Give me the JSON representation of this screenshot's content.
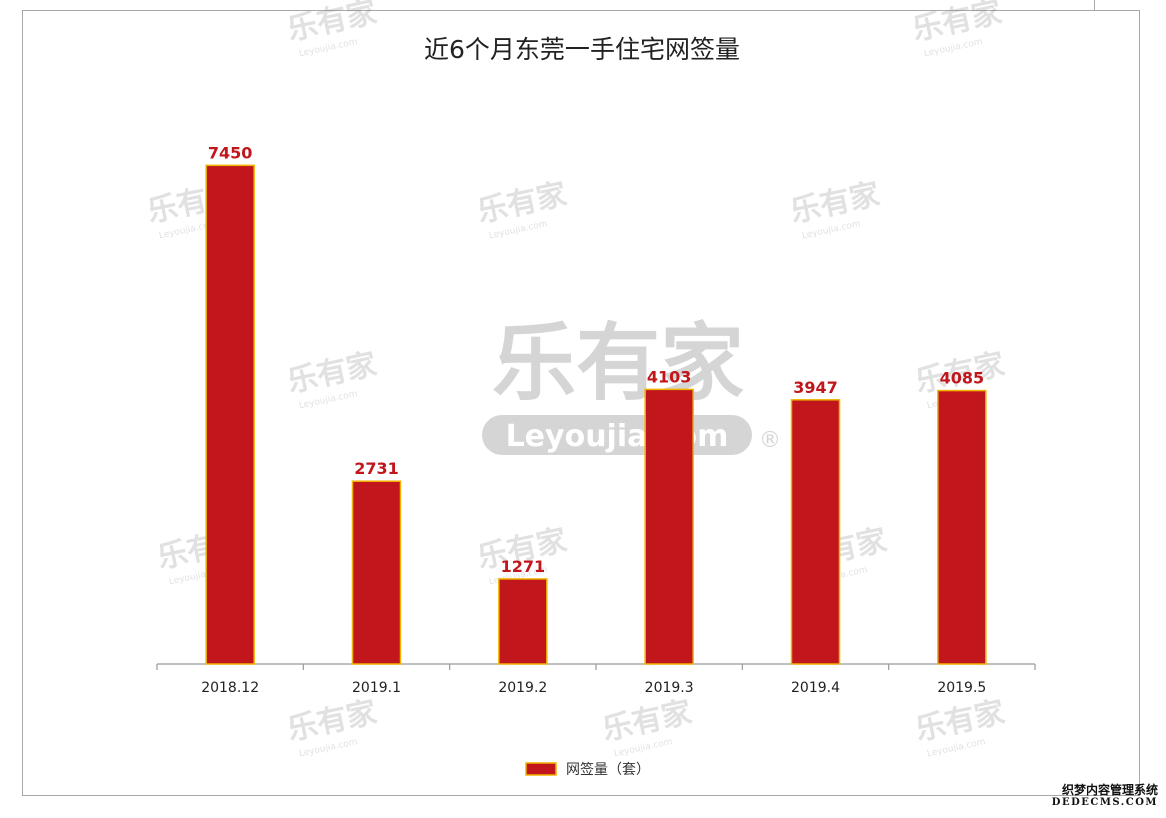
{
  "chart_data": {
    "type": "bar",
    "title": "近6个月东莞一手住宅网签量",
    "categories": [
      "2018.12",
      "2019.1",
      "2019.2",
      "2019.3",
      "2019.4",
      "2019.5"
    ],
    "series": [
      {
        "name": "网签量（套）",
        "values": [
          7450,
          2731,
          1271,
          4103,
          3947,
          4085
        ],
        "color": "#c0161c",
        "edge_color": "#f0b400"
      }
    ],
    "ylim": [
      0,
      7500
    ],
    "grid": false,
    "legend": "bottom-center",
    "data_labels": true,
    "label_color": "#c0161c"
  },
  "watermark": {
    "big_text": "乐有家",
    "big_sub": "Leyoujia.com",
    "registered": "®",
    "small_text": "乐有家",
    "small_sub": "Leyoujia.com"
  },
  "footer": {
    "line1": "织梦内容管理系统",
    "line2": "DEDECMS.COM"
  }
}
